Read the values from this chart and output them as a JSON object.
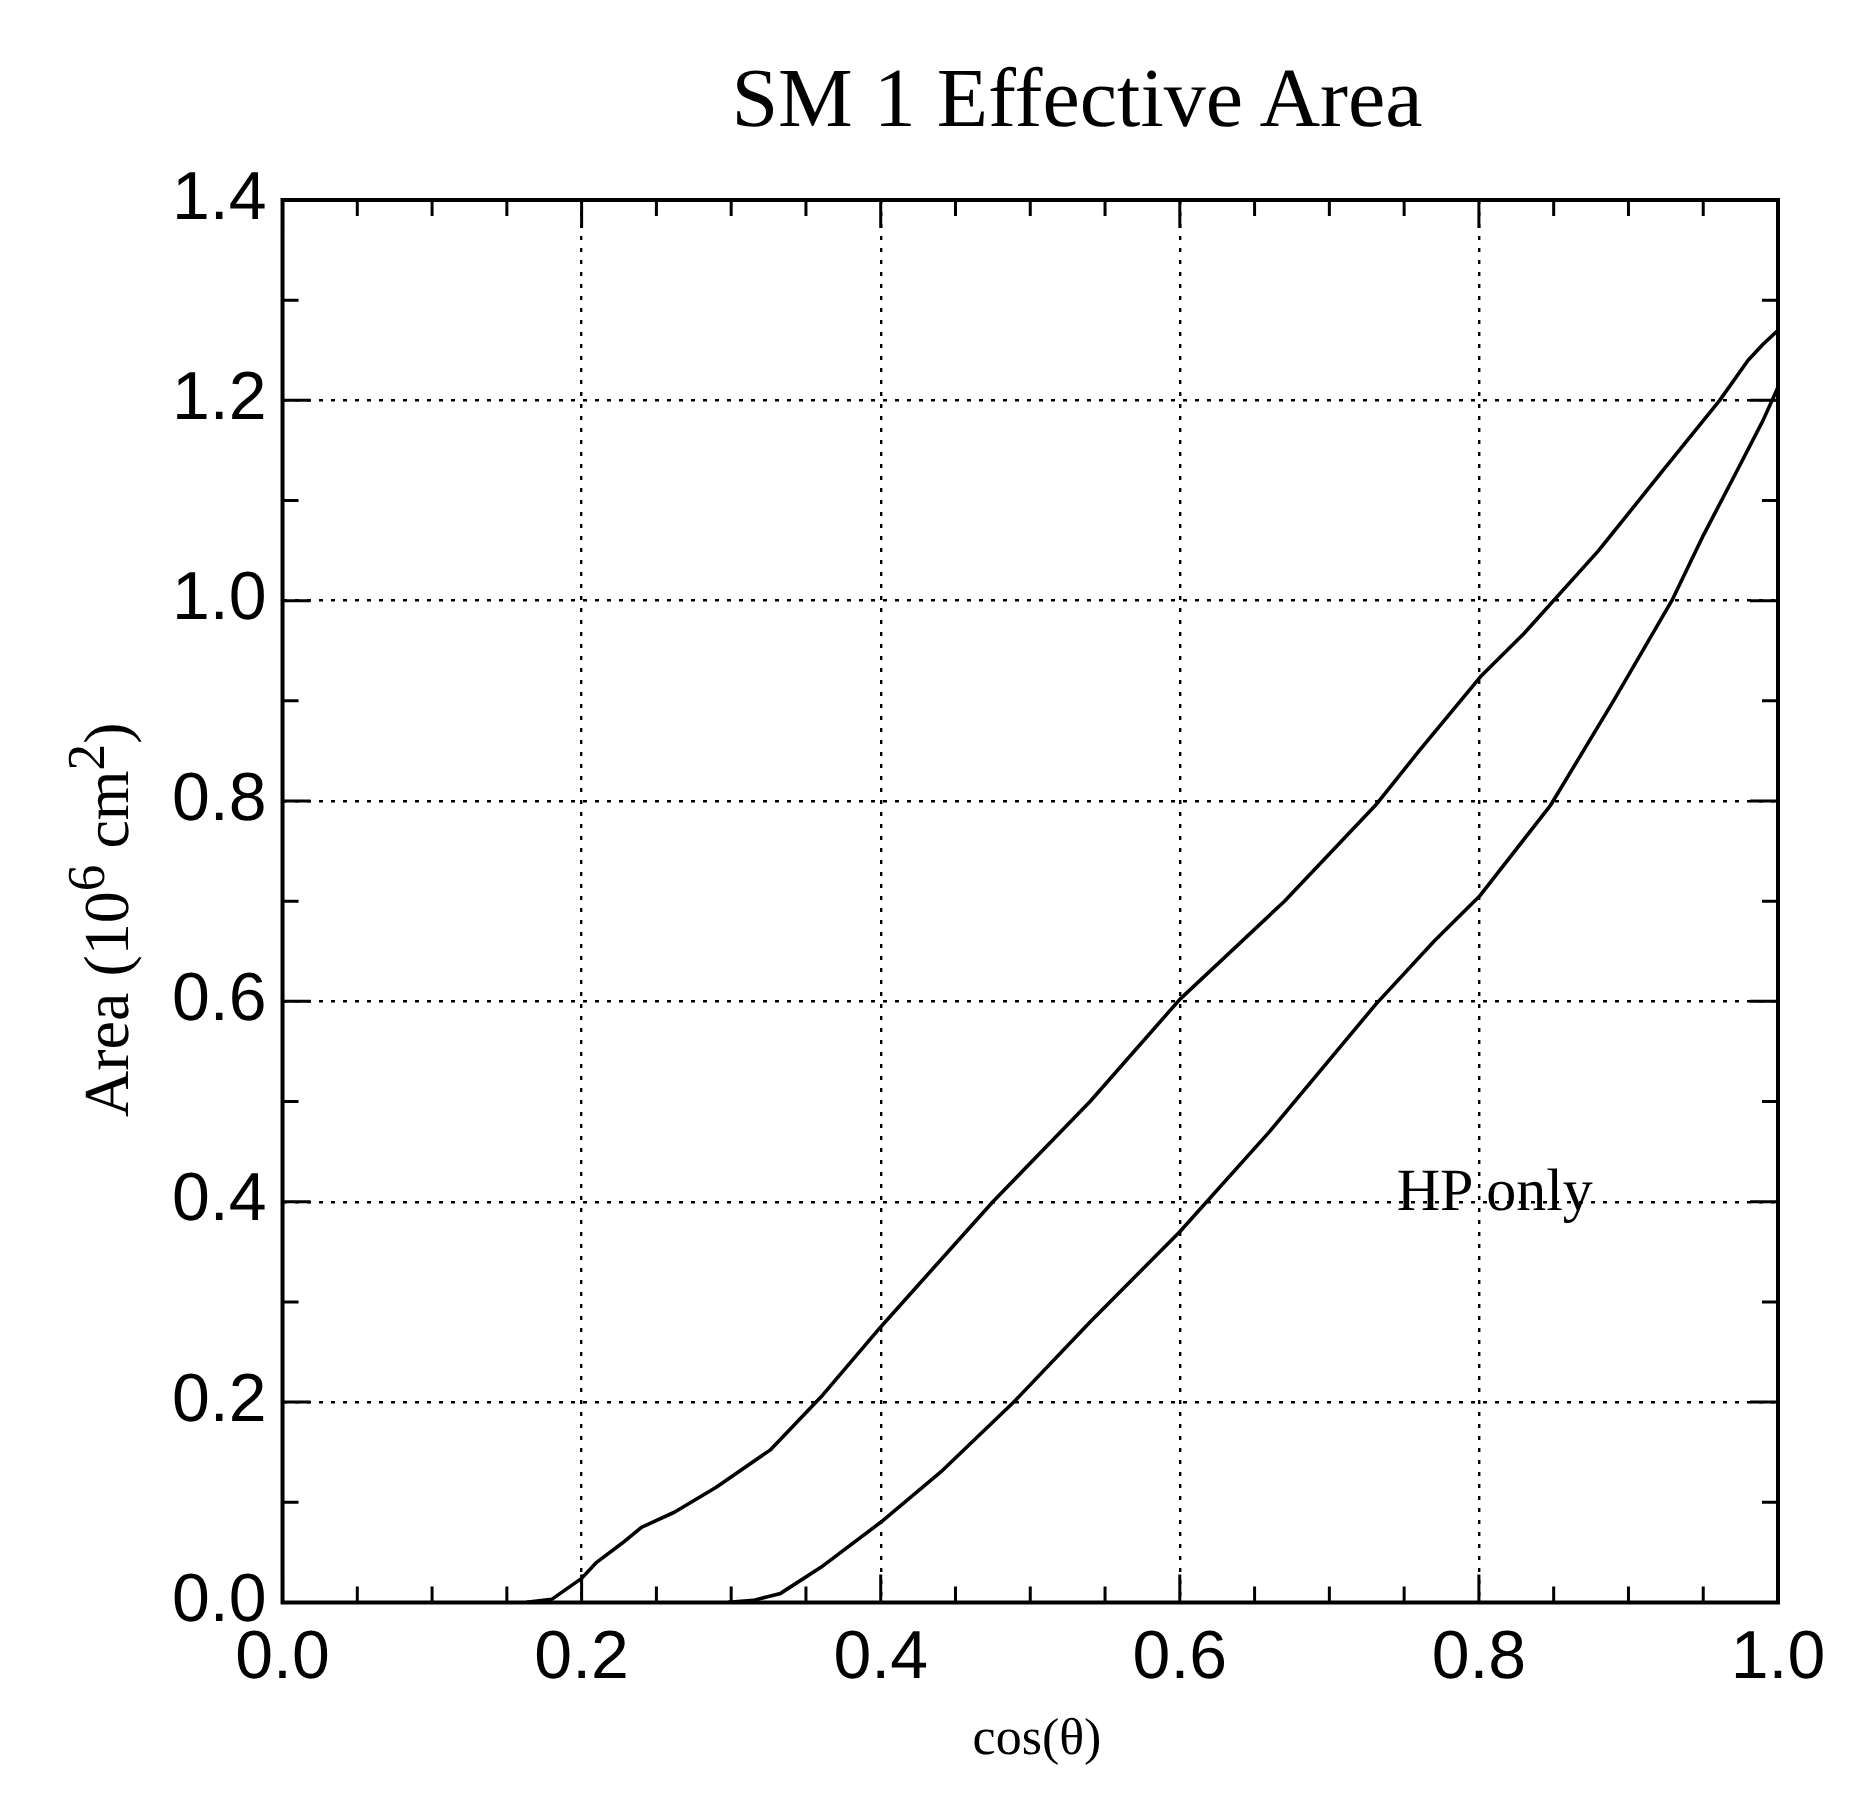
{
  "chart_data": {
    "type": "line",
    "title": "SM 1 Effective Area",
    "xlabel": "cos(θ)",
    "ylabel": "Area (10$^{6}$ cm$^{2}$)",
    "xlim": [
      0,
      1
    ],
    "ylim": [
      0,
      1.4
    ],
    "xticks": [
      {
        "value": 0,
        "label": "0.0"
      },
      {
        "value": 0.05,
        "label": null
      },
      {
        "value": 0.1,
        "label": null
      },
      {
        "value": 0.15,
        "label": null
      },
      0.2,
      {
        "value": 0.25,
        "label": null
      },
      {
        "value": 0.3,
        "label": null
      },
      {
        "value": 0.35,
        "label": null
      },
      0.4,
      {
        "value": 0.45,
        "label": null
      },
      {
        "value": 0.5,
        "label": null
      },
      {
        "value": 0.55,
        "label": null
      },
      0.6,
      {
        "value": 0.65,
        "label": null
      },
      {
        "value": 0.7,
        "label": null
      },
      {
        "value": 0.75,
        "label": null
      },
      0.8,
      {
        "value": 0.85,
        "label": null
      },
      {
        "value": 0.9,
        "label": null
      },
      {
        "value": 0.95,
        "label": null
      },
      {
        "value": 1,
        "label": "1.0"
      }
    ],
    "yticks": [
      {
        "value": 0,
        "label": "0.0"
      },
      {
        "value": 0.1,
        "label": null
      },
      0.2,
      {
        "value": 0.3,
        "label": null
      },
      0.4,
      {
        "value": 0.5,
        "label": null
      },
      0.6,
      {
        "value": 0.7,
        "label": null
      },
      0.8,
      {
        "value": 0.9,
        "label": null
      },
      {
        "value": 1,
        "label": "1.0"
      },
      {
        "value": 1.1,
        "label": null
      },
      1.2,
      {
        "value": 1.3,
        "label": null
      },
      1.4
    ],
    "grid": true,
    "marker": "none",
    "line_style": "solid",
    "series": [
      {
        "color": "#000000",
        "x": [
          0.163,
          0.18,
          0.2,
          0.21,
          0.227,
          0.24,
          0.262,
          0.29,
          0.326,
          0.36,
          0.4,
          0.475,
          0.54,
          0.6,
          0.67,
          0.731,
          0.76,
          0.801,
          0.83,
          0.88,
          0.922,
          0.961,
          0.98,
          0.99,
          1.0
        ],
        "values": [
          0,
          0.003,
          0.024,
          0.04,
          0.059,
          0.075,
          0.09,
          0.115,
          0.152,
          0.205,
          0.275,
          0.4,
          0.5,
          0.602,
          0.7,
          0.796,
          0.85,
          0.924,
          0.967,
          1.05,
          1.128,
          1.2,
          1.24,
          1.256,
          1.27
        ]
      },
      {
        "color": "#000000",
        "x": [
          0.298,
          0.315,
          0.333,
          0.36,
          0.4,
          0.44,
          0.489,
          0.54,
          0.6,
          0.66,
          0.731,
          0.77,
          0.801,
          0.848,
          0.89,
          0.929,
          0.95,
          0.972,
          0.99,
          1.0
        ],
        "values": [
          0,
          0.002,
          0.009,
          0.035,
          0.08,
          0.13,
          0.2,
          0.28,
          0.37,
          0.47,
          0.597,
          0.66,
          0.706,
          0.796,
          0.9,
          1.0,
          1.065,
          1.128,
          1.18,
          1.213
        ]
      }
    ],
    "annotations": [
      "HP only"
    ]
  }
}
